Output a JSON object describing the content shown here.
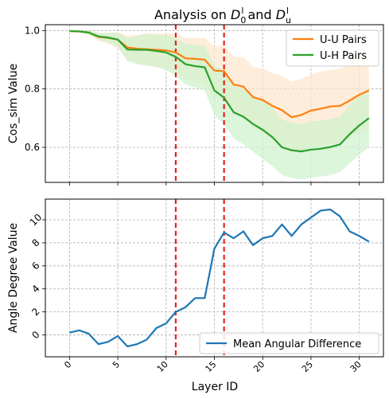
{
  "chart_data": [
    {
      "type": "line",
      "title_main": "Analysis on ",
      "title_d0": "D",
      "title_d0_sub": "0",
      "title_and": " and ",
      "title_du": "D",
      "title_du_sub": "u",
      "title_sup": "l",
      "xlabel": "",
      "ylabel": "Cos_sim Value",
      "xlim": [
        -2.5,
        32.5
      ],
      "ylim": [
        0.48,
        1.02
      ],
      "xticks": [
        0,
        5,
        10,
        15,
        20,
        25,
        30
      ],
      "yticks": [
        0.6,
        0.8,
        1.0
      ],
      "ytick_labels": [
        "0.6",
        "0.8",
        "1.0"
      ],
      "grid": true,
      "legend_position": "top-right",
      "vlines": [
        11,
        16
      ],
      "x": [
        0,
        1,
        2,
        3,
        4,
        5,
        6,
        7,
        8,
        9,
        10,
        11,
        12,
        13,
        14,
        15,
        16,
        17,
        18,
        19,
        20,
        21,
        22,
        23,
        24,
        25,
        26,
        27,
        28,
        29,
        30,
        31
      ],
      "series": [
        {
          "name": "U-U Pairs",
          "color": "#ff7f0e",
          "band_color": "#ffe5cc",
          "values": [
            0.998,
            0.997,
            0.993,
            0.978,
            0.975,
            0.969,
            0.942,
            0.938,
            0.936,
            0.934,
            0.932,
            0.925,
            0.905,
            0.903,
            0.9,
            0.863,
            0.861,
            0.815,
            0.808,
            0.772,
            0.762,
            0.742,
            0.727,
            0.703,
            0.711,
            0.726,
            0.732,
            0.74,
            0.742,
            0.76,
            0.78,
            0.795
          ],
          "lower": [
            0.996,
            0.993,
            0.985,
            0.965,
            0.955,
            0.94,
            0.9,
            0.885,
            0.88,
            0.875,
            0.87,
            0.86,
            0.835,
            0.825,
            0.81,
            0.775,
            0.76,
            0.715,
            0.7,
            0.665,
            0.65,
            0.625,
            0.605,
            0.58,
            0.585,
            0.6,
            0.605,
            0.61,
            0.615,
            0.63,
            0.65,
            0.665
          ],
          "upper": [
            1.0,
            1.0,
            1.0,
            0.99,
            0.992,
            0.995,
            0.982,
            0.985,
            0.99,
            0.99,
            0.99,
            0.988,
            0.975,
            0.975,
            0.975,
            0.945,
            0.95,
            0.91,
            0.91,
            0.875,
            0.87,
            0.855,
            0.845,
            0.825,
            0.835,
            0.85,
            0.86,
            0.865,
            0.87,
            0.885,
            0.905,
            0.915
          ]
        },
        {
          "name": "U-H Pairs",
          "color": "#2ca02c",
          "band_color": "#ccf2cc",
          "values": [
            0.998,
            0.997,
            0.993,
            0.98,
            0.976,
            0.969,
            0.935,
            0.934,
            0.934,
            0.93,
            0.925,
            0.91,
            0.885,
            0.878,
            0.874,
            0.795,
            0.77,
            0.72,
            0.705,
            0.68,
            0.66,
            0.635,
            0.6,
            0.59,
            0.586,
            0.592,
            0.595,
            0.601,
            0.61,
            0.645,
            0.675,
            0.7
          ],
          "lower": [
            0.996,
            0.993,
            0.985,
            0.968,
            0.96,
            0.945,
            0.895,
            0.885,
            0.88,
            0.875,
            0.865,
            0.845,
            0.815,
            0.805,
            0.795,
            0.71,
            0.68,
            0.63,
            0.61,
            0.585,
            0.56,
            0.535,
            0.505,
            0.495,
            0.49,
            0.495,
            0.5,
            0.505,
            0.515,
            0.545,
            0.575,
            0.6
          ],
          "upper": [
            1.0,
            1.0,
            1.0,
            0.992,
            0.992,
            0.993,
            0.975,
            0.983,
            0.988,
            0.985,
            0.985,
            0.975,
            0.955,
            0.95,
            0.95,
            0.88,
            0.86,
            0.81,
            0.8,
            0.775,
            0.76,
            0.735,
            0.695,
            0.685,
            0.68,
            0.69,
            0.69,
            0.697,
            0.705,
            0.745,
            0.775,
            0.8
          ]
        }
      ]
    },
    {
      "type": "line",
      "xlabel": "Layer ID",
      "ylabel": "Angle Degree Value",
      "xlim": [
        -2.5,
        32.5
      ],
      "ylim": [
        -1.9,
        11.8
      ],
      "xticks": [
        0,
        5,
        10,
        15,
        20,
        25,
        30
      ],
      "xtick_labels": [
        "0",
        "5",
        "10",
        "15",
        "20",
        "25",
        "30"
      ],
      "yticks": [
        0,
        2,
        4,
        6,
        8,
        10
      ],
      "ytick_labels": [
        "0",
        "2",
        "4",
        "6",
        "8",
        "10"
      ],
      "grid": true,
      "legend_position": "bottom-right",
      "vlines": [
        11,
        16
      ],
      "x": [
        0,
        1,
        2,
        3,
        4,
        5,
        6,
        7,
        8,
        9,
        10,
        11,
        12,
        13,
        14,
        15,
        16,
        17,
        18,
        19,
        20,
        21,
        22,
        23,
        24,
        25,
        26,
        27,
        28,
        29,
        30,
        31
      ],
      "series": [
        {
          "name": "Mean Angular Difference",
          "color": "#1f77b4",
          "values": [
            0.2,
            0.4,
            0.1,
            -0.8,
            -0.6,
            -0.1,
            -1.0,
            -0.8,
            -0.4,
            0.6,
            1.0,
            2.0,
            2.4,
            3.2,
            3.2,
            7.5,
            8.9,
            8.4,
            9.0,
            7.8,
            8.4,
            8.6,
            9.6,
            8.6,
            9.6,
            10.2,
            10.8,
            10.9,
            10.3,
            9.0,
            8.6,
            8.1
          ]
        }
      ]
    }
  ]
}
